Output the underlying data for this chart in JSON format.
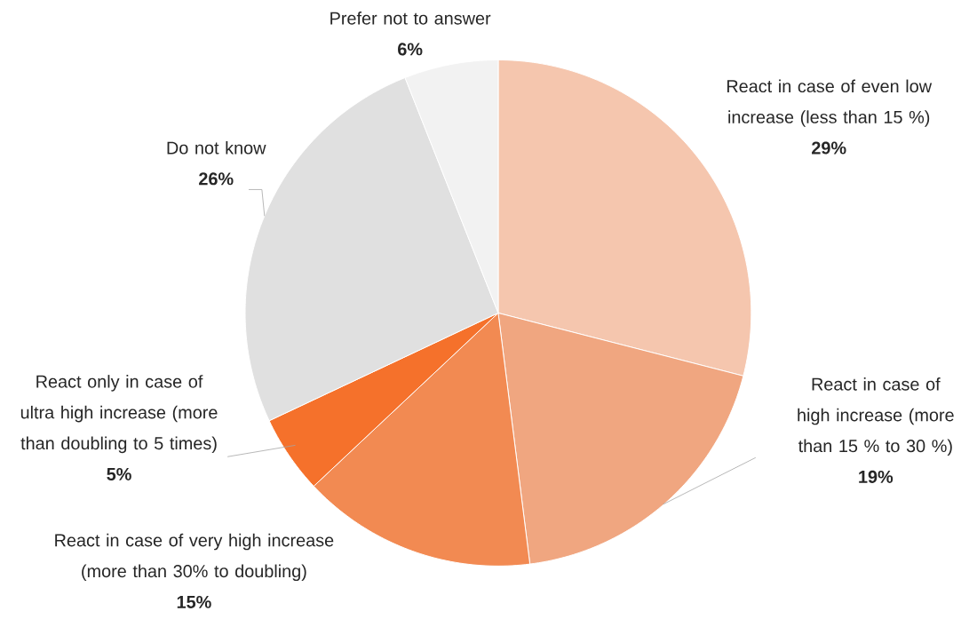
{
  "chart_data": {
    "type": "pie",
    "categories": [
      "React in case of even low increase (less than 15 %)",
      "React in case of high increase (more than 15 % to 30 %)",
      "React in case of very high increase (more than 30% to doubling)",
      "React only in case of ultra high increase (more than doubling to 5 times)",
      "Do not know",
      "Prefer not to answer"
    ],
    "values": [
      29,
      19,
      15,
      5,
      26,
      6
    ],
    "value_labels": [
      "29%",
      "19%",
      "15%",
      "5%",
      "26%",
      "6%"
    ],
    "colors": [
      "#f5c6ae",
      "#f0a680",
      "#f28a52",
      "#f5712b",
      "#e0e0e0",
      "#f2f2f2"
    ]
  }
}
